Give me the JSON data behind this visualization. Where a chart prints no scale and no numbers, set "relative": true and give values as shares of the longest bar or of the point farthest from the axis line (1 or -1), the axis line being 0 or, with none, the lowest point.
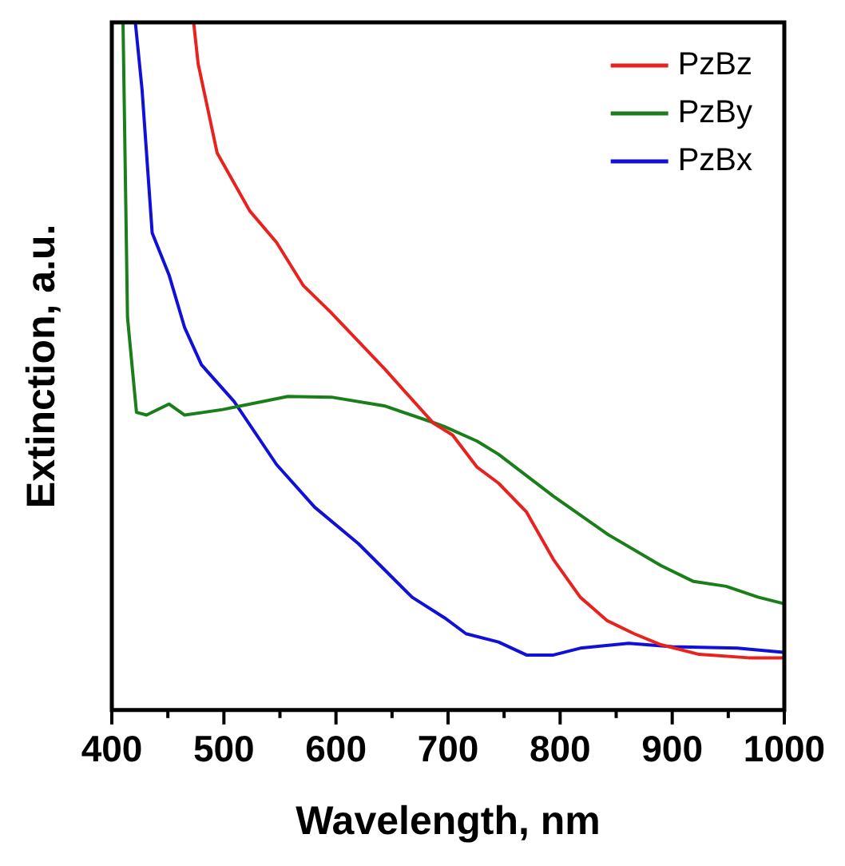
{
  "chart_data": {
    "type": "line",
    "xlabel": "Wavelength, nm",
    "ylabel": "Extinction, a.u.",
    "relative": true,
    "legend": "top right",
    "marker": "none",
    "line_style": "solid",
    "grid": false,
    "xlim": [
      400,
      1000
    ],
    "xticks": [
      400,
      {
        "value": 450,
        "label": null
      },
      500,
      {
        "value": 550,
        "label": null
      },
      600,
      {
        "value": 650,
        "label": null
      },
      700,
      {
        "value": 750,
        "label": null
      },
      800,
      {
        "value": 850,
        "label": null
      },
      900,
      {
        "value": 950,
        "label": null
      },
      1000
    ],
    "series": [
      {
        "name": "PzBz",
        "color": "#e8221f",
        "x": [
          473,
          477,
          494,
          523,
          547,
          571,
          595,
          644,
          687,
          704,
          726,
          745,
          770,
          794,
          818,
          842,
          866,
          890,
          924,
          968,
          999
        ],
        "values": [
          1,
          0.94,
          0.81,
          0.726,
          0.68,
          0.617,
          0.579,
          0.495,
          0.417,
          0.4,
          0.353,
          0.33,
          0.288,
          0.219,
          0.164,
          0.13,
          0.111,
          0.095,
          0.081,
          0.076,
          0.076
        ]
      },
      {
        "name": "PzBy",
        "color": "#1a7f1a",
        "x": [
          410,
          414,
          422,
          431,
          451,
          465,
          499,
          557,
          596,
          644,
          687,
          697,
          726,
          745,
          794,
          842,
          890,
          919,
          948,
          977,
          999
        ],
        "values": [
          1,
          0.571,
          0.433,
          0.429,
          0.445,
          0.429,
          0.437,
          0.456,
          0.455,
          0.442,
          0.418,
          0.412,
          0.391,
          0.372,
          0.311,
          0.256,
          0.21,
          0.187,
          0.18,
          0.164,
          0.155
        ]
      },
      {
        "name": "PzBx",
        "color": "#1010d8",
        "x": [
          421,
          427,
          436,
          451,
          465,
          480,
          509,
          547,
          581,
          620,
          668,
          697,
          716,
          745,
          770,
          794,
          818,
          861,
          900,
          958,
          999
        ],
        "values": [
          1,
          0.902,
          0.694,
          0.633,
          0.556,
          0.502,
          0.449,
          0.357,
          0.295,
          0.242,
          0.164,
          0.134,
          0.111,
          0.099,
          0.08,
          0.08,
          0.09,
          0.097,
          0.092,
          0.09,
          0.084
        ]
      }
    ]
  }
}
